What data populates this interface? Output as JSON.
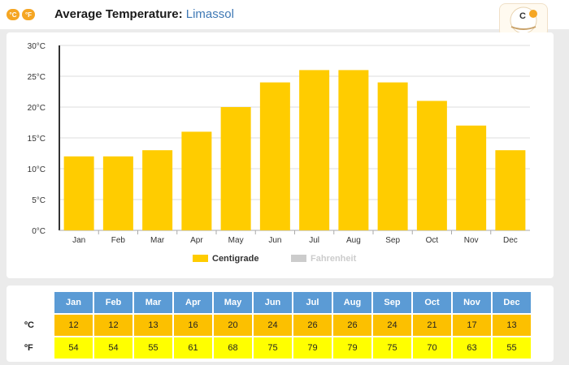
{
  "header": {
    "unit_c": "°C",
    "unit_f": "°F",
    "title": "Average Temperature:",
    "location": "Limassol"
  },
  "colors": {
    "centigrade": "#ffcc00",
    "fahrenheit": "#cccccc",
    "table_header": "#5b9bd5",
    "table_c_row": "#fcc000",
    "table_f_row": "#ffff00",
    "accent": "#f5a623"
  },
  "chart_data": {
    "type": "bar",
    "categories": [
      "Jan",
      "Feb",
      "Mar",
      "Apr",
      "May",
      "Jun",
      "Jul",
      "Aug",
      "Sep",
      "Oct",
      "Nov",
      "Dec"
    ],
    "series": [
      {
        "name": "Centigrade",
        "values": [
          12,
          12,
          13,
          16,
          20,
          24,
          26,
          26,
          24,
          21,
          17,
          13
        ],
        "visible": true
      },
      {
        "name": "Fahrenheit",
        "values": [
          54,
          54,
          55,
          61,
          68,
          75,
          79,
          79,
          75,
          70,
          63,
          55
        ],
        "visible": false
      }
    ],
    "ylim": [
      0,
      30
    ],
    "yticks": [
      0,
      5,
      10,
      15,
      20,
      25,
      30
    ],
    "ytick_suffix": "°C",
    "grid": true,
    "legend_position": "bottom-center"
  },
  "table": {
    "months": [
      "Jan",
      "Feb",
      "Mar",
      "Apr",
      "May",
      "Jun",
      "Jul",
      "Aug",
      "Sep",
      "Oct",
      "Nov",
      "Dec"
    ],
    "c_label": "ºC",
    "f_label": "ºF",
    "c_values": [
      "12",
      "12",
      "13",
      "16",
      "20",
      "24",
      "26",
      "26",
      "24",
      "21",
      "17",
      "13"
    ],
    "f_values": [
      "54",
      "54",
      "55",
      "61",
      "68",
      "75",
      "79",
      "79",
      "75",
      "70",
      "63",
      "55"
    ]
  }
}
